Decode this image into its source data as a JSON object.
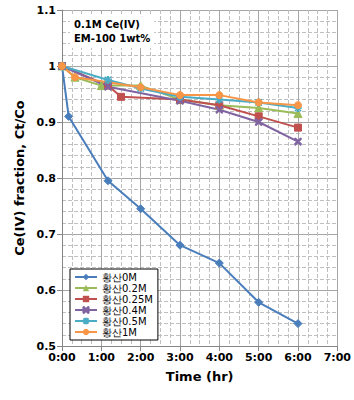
{
  "chart_data": {
    "type": "line",
    "title": "0.1M Ce(IV)\nEM-100 1wt%",
    "x_label": "Time (hr)",
    "y_label": "Ce(IV) fraction, Ct/Co",
    "xlim": [
      0,
      7
    ],
    "xticks": [
      {
        "value": 0,
        "label": "0:00"
      },
      {
        "value": 1,
        "label": "1:00"
      },
      {
        "value": 2,
        "label": "2:00"
      },
      {
        "value": 3,
        "label": "3:00"
      },
      {
        "value": 4,
        "label": "4:00"
      },
      {
        "value": 5,
        "label": "5:00"
      },
      {
        "value": 6,
        "label": "6:00"
      },
      {
        "value": 7,
        "label": "7:00"
      }
    ],
    "ylim": [
      0.5,
      1.1
    ],
    "yticks": [
      0.5,
      0.6,
      0.7,
      0.8,
      0.9,
      1,
      1.1
    ],
    "grid": true,
    "legend": "lower left",
    "series": [
      {
        "name": "황산0M",
        "color": "#4a7ebb",
        "marker": "diamond",
        "x": [
          0,
          0.17,
          1.17,
          2,
          3,
          4,
          5,
          6
        ],
        "values": [
          1,
          0.91,
          0.795,
          0.745,
          0.68,
          0.648,
          0.578,
          0.54
        ]
      },
      {
        "name": "황산0.2M",
        "color": "#9bbb59",
        "marker": "triangle",
        "x": [
          0,
          0.33,
          1,
          2,
          3,
          4,
          5,
          6
        ],
        "values": [
          1,
          0.98,
          0.965,
          0.965,
          0.94,
          0.93,
          0.925,
          0.915
        ]
      },
      {
        "name": "황산0.25M",
        "color": "#c0504d",
        "marker": "square",
        "x": [
          0,
          1.17,
          1.5,
          3,
          4,
          5,
          6
        ],
        "values": [
          1,
          0.965,
          0.945,
          0.94,
          0.93,
          0.91,
          0.89
        ]
      },
      {
        "name": "황산0.4M",
        "color": "#8064a2",
        "marker": "x",
        "x": [
          0,
          1.17,
          3,
          4,
          5,
          6
        ],
        "values": [
          1,
          0.963,
          0.938,
          0.922,
          0.9,
          0.865
        ]
      },
      {
        "name": "황산0.5M",
        "color": "#4bacc6",
        "marker": "asterisk",
        "x": [
          0,
          1.17,
          2,
          3,
          4,
          5,
          6
        ],
        "values": [
          1,
          0.975,
          0.96,
          0.945,
          0.94,
          0.935,
          0.925
        ]
      },
      {
        "name": "황산1M",
        "color": "#f79646",
        "marker": "circle",
        "x": [
          0,
          0.33,
          2,
          3,
          4,
          5,
          6
        ],
        "values": [
          1,
          0.98,
          0.962,
          0.948,
          0.948,
          0.935,
          0.93
        ]
      }
    ]
  }
}
